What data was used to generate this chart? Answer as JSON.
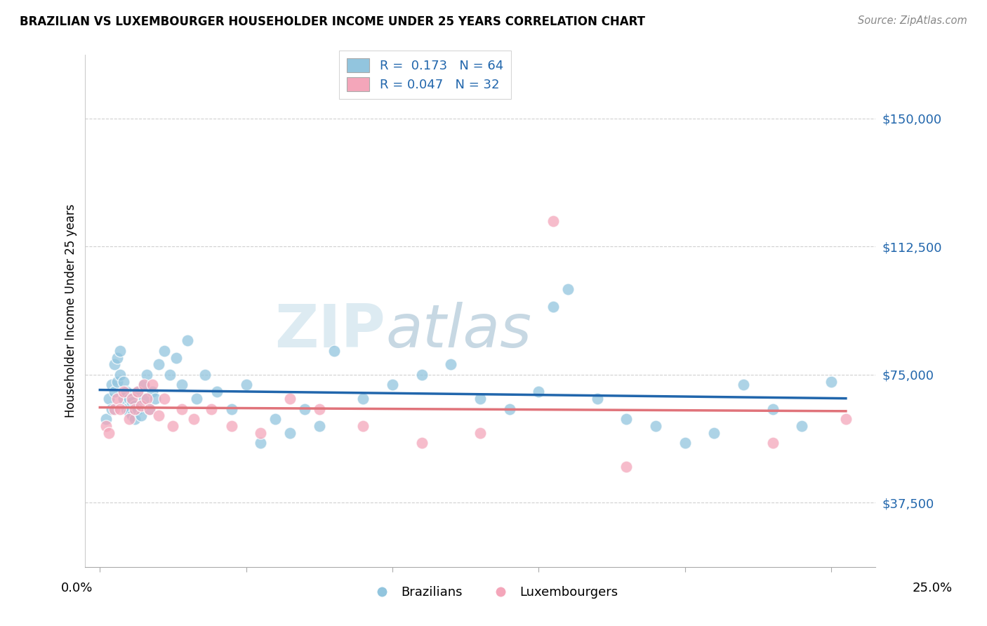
{
  "title": "BRAZILIAN VS LUXEMBOURGER HOUSEHOLDER INCOME UNDER 25 YEARS CORRELATION CHART",
  "source": "Source: ZipAtlas.com",
  "ylabel": "Householder Income Under 25 years",
  "ytick_labels": [
    "$37,500",
    "$75,000",
    "$112,500",
    "$150,000"
  ],
  "ytick_values": [
    37500,
    75000,
    112500,
    150000
  ],
  "ylim": [
    18750,
    168750
  ],
  "xlim": [
    -0.005,
    0.265
  ],
  "xticks": [
    0.0,
    0.05,
    0.1,
    0.15,
    0.2,
    0.25
  ],
  "legend_R_blue": "R =  0.173",
  "legend_N_blue": "N = 64",
  "legend_R_pink": "R = 0.047",
  "legend_N_pink": "N = 32",
  "watermark": "ZIPatlas",
  "blue_scatter_color": "#92c5de",
  "blue_line_color": "#2166ac",
  "pink_scatter_color": "#f4a6ba",
  "pink_line_color": "#e0737a",
  "background_color": "#ffffff",
  "grid_color": "#d0d0d0",
  "brazil_x": [
    0.002,
    0.003,
    0.004,
    0.004,
    0.005,
    0.005,
    0.006,
    0.006,
    0.007,
    0.007,
    0.008,
    0.008,
    0.009,
    0.009,
    0.01,
    0.01,
    0.011,
    0.011,
    0.012,
    0.012,
    0.013,
    0.013,
    0.014,
    0.015,
    0.015,
    0.016,
    0.017,
    0.018,
    0.019,
    0.02,
    0.022,
    0.024,
    0.026,
    0.028,
    0.03,
    0.033,
    0.036,
    0.04,
    0.045,
    0.05,
    0.055,
    0.06,
    0.065,
    0.07,
    0.075,
    0.08,
    0.09,
    0.1,
    0.11,
    0.12,
    0.13,
    0.14,
    0.15,
    0.155,
    0.16,
    0.17,
    0.18,
    0.19,
    0.2,
    0.21,
    0.22,
    0.23,
    0.24,
    0.25
  ],
  "brazil_y": [
    62000,
    68000,
    65000,
    72000,
    70000,
    78000,
    73000,
    80000,
    75000,
    82000,
    68000,
    73000,
    65000,
    70000,
    64000,
    68000,
    63000,
    67000,
    62000,
    66000,
    65000,
    70000,
    63000,
    72000,
    68000,
    75000,
    65000,
    70000,
    68000,
    78000,
    82000,
    75000,
    80000,
    72000,
    85000,
    68000,
    75000,
    70000,
    65000,
    72000,
    55000,
    62000,
    58000,
    65000,
    60000,
    82000,
    68000,
    72000,
    75000,
    78000,
    68000,
    65000,
    70000,
    95000,
    100000,
    68000,
    62000,
    60000,
    55000,
    58000,
    72000,
    65000,
    60000,
    73000
  ],
  "lux_x": [
    0.002,
    0.003,
    0.005,
    0.006,
    0.007,
    0.008,
    0.01,
    0.011,
    0.012,
    0.013,
    0.014,
    0.015,
    0.016,
    0.017,
    0.018,
    0.02,
    0.022,
    0.025,
    0.028,
    0.032,
    0.038,
    0.045,
    0.055,
    0.065,
    0.075,
    0.09,
    0.11,
    0.13,
    0.155,
    0.18,
    0.23,
    0.255
  ],
  "lux_y": [
    60000,
    58000,
    65000,
    68000,
    65000,
    70000,
    62000,
    68000,
    65000,
    70000,
    66000,
    72000,
    68000,
    65000,
    72000,
    63000,
    68000,
    60000,
    65000,
    62000,
    65000,
    60000,
    58000,
    68000,
    65000,
    60000,
    55000,
    58000,
    120000,
    48000,
    55000,
    62000
  ]
}
